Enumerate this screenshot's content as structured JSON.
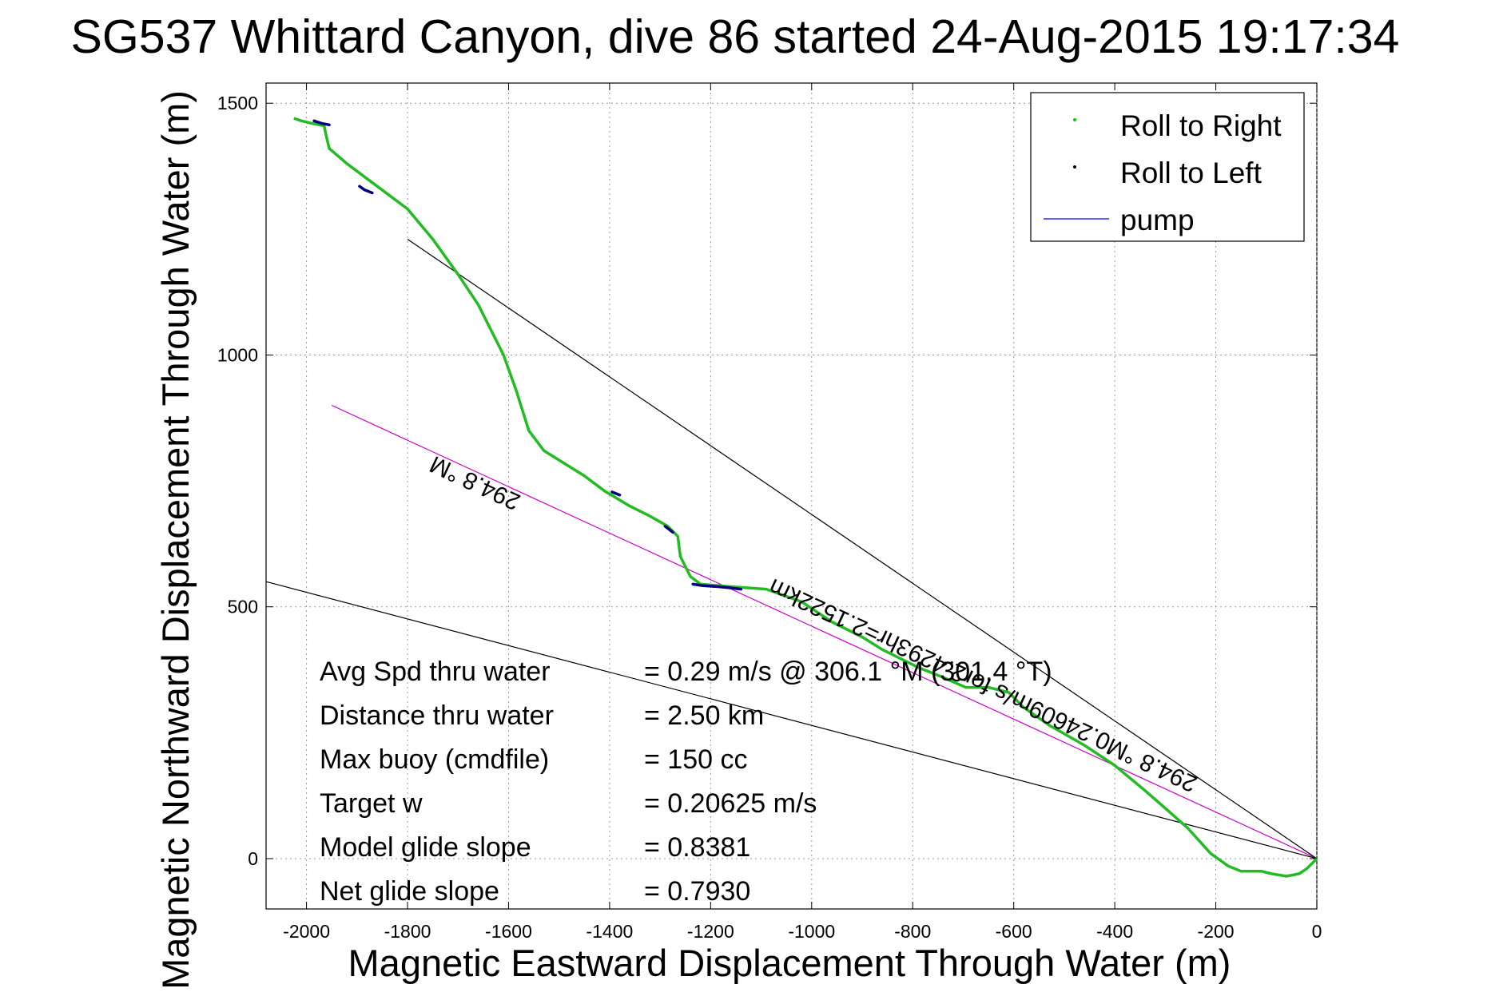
{
  "chart_data": {
    "type": "line",
    "title": "SG537 Whittard Canyon, dive 86 started 24-Aug-2015 19:17:34",
    "xlabel": "Magnetic Eastward Displacement Through Water (m)",
    "ylabel": "Magnetic Northward Displacement Through Water (m)",
    "xlim": [
      -2080,
      0
    ],
    "ylim": [
      -100,
      1540
    ],
    "xticks": [
      -2000,
      -1800,
      -1600,
      -1400,
      -1200,
      -1000,
      -800,
      -600,
      -400,
      -200,
      0
    ],
    "yticks": [
      0,
      500,
      1000,
      1500
    ],
    "grid": true,
    "legend_position": "top-right",
    "legend": [
      {
        "name": "Roll to Right",
        "color": "#00cc00",
        "marker": "dot"
      },
      {
        "name": "Roll to Left",
        "color": "#000000",
        "marker": "dot"
      },
      {
        "name": "pump",
        "color": "#0000ff",
        "marker": "line"
      }
    ],
    "series": [
      {
        "name": "Roll to Right",
        "color": "#22bb22",
        "x": [
          0,
          -20,
          -35,
          -60,
          -90,
          -110,
          -150,
          -175,
          -210,
          -255,
          -300,
          -340,
          -400,
          -460,
          -530,
          -580,
          -610,
          -650,
          -695,
          -740,
          -790,
          -860,
          -900,
          -960,
          -1020,
          -1090,
          -1160,
          -1220,
          -1240,
          -1260,
          -1265,
          -1285,
          -1320,
          -1360,
          -1410,
          -1450,
          -1490,
          -1530,
          -1560,
          -1585,
          -1610,
          -1630,
          -1660,
          -1700,
          -1750,
          -1800,
          -1840,
          -1880,
          -1920,
          -1955,
          -1962,
          -1965,
          -1990,
          -2010,
          -2025
        ],
        "y": [
          0,
          -20,
          -30,
          -35,
          -30,
          -25,
          -25,
          -15,
          10,
          60,
          100,
          135,
          185,
          225,
          265,
          300,
          330,
          340,
          340,
          360,
          380,
          415,
          440,
          470,
          510,
          535,
          540,
          545,
          560,
          600,
          640,
          660,
          680,
          700,
          730,
          760,
          785,
          810,
          850,
          930,
          1000,
          1040,
          1100,
          1160,
          1230,
          1290,
          1320,
          1350,
          1380,
          1410,
          1440,
          1455,
          1460,
          1465,
          1470
        ]
      },
      {
        "name": "Roll to Left",
        "color": "#000080",
        "segments": [
          {
            "x": [
              -1235,
              -1215,
              -1185,
              -1165,
              -1140
            ],
            "y": [
              545,
              542,
              540,
              538,
              535
            ]
          },
          {
            "x": [
              -1290,
              -1280,
              -1275
            ],
            "y": [
              660,
              652,
              648
            ]
          },
          {
            "x": [
              -1895,
              -1885,
              -1870
            ],
            "y": [
              1335,
              1328,
              1322
            ]
          },
          {
            "x": [
              -1985,
              -1970,
              -1955
            ],
            "y": [
              1465,
              1460,
              1457
            ]
          },
          {
            "x": [
              -1395,
              -1380
            ],
            "y": [
              728,
              722
            ]
          }
        ]
      }
    ],
    "reference_lines": [
      {
        "label": "294.8 °M",
        "color": "#cc00cc",
        "x": [
          -1950,
          0
        ],
        "y": [
          900,
          0
        ]
      },
      {
        "label": "",
        "color": "#000000",
        "x": [
          -1800,
          0
        ],
        "y": [
          1230,
          0
        ]
      },
      {
        "label": "",
        "color": "#000000",
        "x": [
          -2080,
          0
        ],
        "y": [
          550,
          0
        ]
      }
    ],
    "annotations": [
      {
        "text": "294.8 °M",
        "x": -1660,
        "y": 760,
        "rotation_deg": 205
      },
      {
        "text": "0.24609m/s for2.4293hr=2.1522km",
        "x": -740,
        "y": 400,
        "rotation_deg": 205
      },
      {
        "text": "294.8 °M",
        "x": -320,
        "y": 200,
        "rotation_deg": 205
      }
    ],
    "stats": [
      {
        "label": "Avg Spd thru water",
        "value": "=  0.29 m/s @ 306.1 °M (301.4 °T)"
      },
      {
        "label": "Distance thru water",
        "value": "=  2.50 km"
      },
      {
        "label": "Max buoy (cmdfile)",
        "value": "= 150 cc"
      },
      {
        "label": "Target w",
        "value": "= 0.20625 m/s"
      },
      {
        "label": "Model glide slope",
        "value": "= 0.8381"
      },
      {
        "label": "Net glide slope",
        "value": "= 0.7930"
      }
    ]
  }
}
